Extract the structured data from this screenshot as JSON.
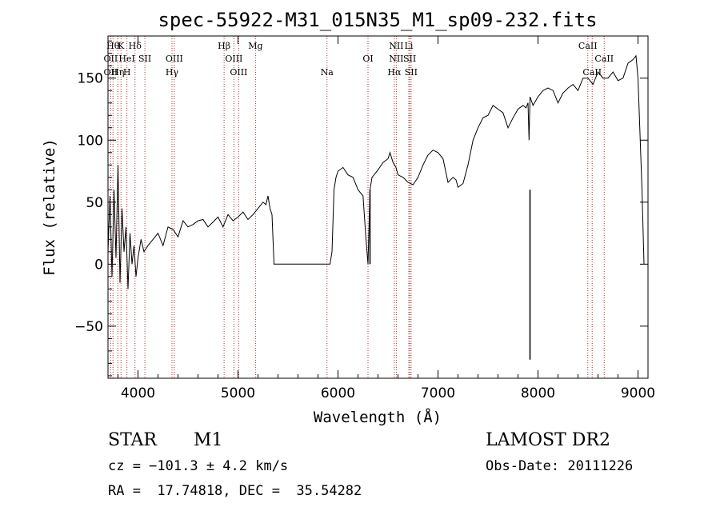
{
  "chart_data": {
    "type": "line",
    "title": "spec-55922-M31_015N35_M1_sp09-232.fits",
    "xlabel": "Wavelength (Å)",
    "ylabel": "Flux (relative)",
    "xlim": [
      3700,
      9100
    ],
    "ylim": [
      -92,
      184
    ],
    "xticks": [
      4000,
      5000,
      6000,
      7000,
      8000,
      9000
    ],
    "yticks": [
      -50,
      0,
      50,
      100,
      150
    ],
    "grid": false,
    "line_color": "#000000",
    "marker_color": "#b03030",
    "series": [
      {
        "x": [
          3700,
          3720,
          3740,
          3760,
          3780,
          3800,
          3820,
          3840,
          3860,
          3880,
          3900,
          3920,
          3940,
          3960,
          3980,
          4000,
          4030,
          4060,
          4100,
          4150,
          4200,
          4250,
          4300,
          4350,
          4400,
          4450,
          4500,
          4550,
          4600,
          4650,
          4700,
          4750,
          4800,
          4850,
          4900,
          4950,
          5000,
          5050,
          5100,
          5150,
          5200,
          5250,
          5280,
          5300,
          5320,
          5340,
          5360,
          5900,
          5920,
          5940,
          5960,
          5980,
          6000,
          6050,
          6100,
          6150,
          6200,
          6250,
          6280,
          6300,
          6320,
          6340,
          6400,
          6450,
          6500,
          6520,
          6550,
          6580,
          6600,
          6650,
          6700,
          6750,
          6800,
          6850,
          6900,
          6950,
          7000,
          7050,
          7100,
          7150,
          7180,
          7200,
          7250,
          7300,
          7350,
          7400,
          7450,
          7500,
          7550,
          7600,
          7650,
          7700,
          7750,
          7800,
          7850,
          7880,
          7900,
          7910,
          7920,
          7950,
          8000,
          8050,
          8100,
          8150,
          8200,
          8250,
          8300,
          8350,
          8400,
          8450,
          8500,
          8550,
          8600,
          8650,
          8700,
          8750,
          8800,
          8850,
          8900,
          8950,
          8980,
          9000,
          9020,
          9040,
          9060
        ],
        "y": [
          10,
          55,
          -10,
          60,
          5,
          80,
          -15,
          45,
          10,
          30,
          -20,
          25,
          0,
          15,
          -10,
          5,
          20,
          10,
          15,
          20,
          25,
          15,
          30,
          28,
          22,
          35,
          30,
          32,
          35,
          36,
          30,
          34,
          38,
          30,
          40,
          35,
          38,
          42,
          36,
          40,
          45,
          50,
          48,
          55,
          45,
          40,
          0,
          0,
          0,
          10,
          60,
          70,
          75,
          78,
          72,
          70,
          60,
          55,
          20,
          0,
          60,
          70,
          76,
          82,
          85,
          90,
          82,
          78,
          72,
          70,
          66,
          64,
          70,
          80,
          88,
          92,
          90,
          85,
          66,
          70,
          68,
          62,
          65,
          80,
          100,
          110,
          118,
          120,
          128,
          125,
          122,
          110,
          118,
          125,
          128,
          126,
          130,
          100,
          135,
          128,
          135,
          140,
          142,
          140,
          130,
          138,
          142,
          145,
          140,
          150,
          150,
          145,
          155,
          150,
          150,
          155,
          148,
          150,
          162,
          165,
          168,
          150,
          105,
          60,
          0
        ],
        "spikes": [
          {
            "x": 7920,
            "y": -77
          },
          {
            "x": 6320,
            "y": 0
          }
        ]
      }
    ],
    "line_markers": [
      {
        "wl": 3750,
        "label": "Hθ",
        "row": 0
      },
      {
        "wl": 3830,
        "label": "K",
        "row": 0
      },
      {
        "wl": 3970,
        "label": "Hδ",
        "row": 0
      },
      {
        "wl": 4861,
        "label": "Hβ",
        "row": 0
      },
      {
        "wl": 5175,
        "label": "Mg",
        "row": 0
      },
      {
        "wl": 6583,
        "label": "NII",
        "row": 0
      },
      {
        "wl": 6708,
        "label": "Li",
        "row": 0
      },
      {
        "wl": 8498,
        "label": "CaII",
        "row": 0
      },
      {
        "wl": 3727,
        "label": "OII",
        "row": 1
      },
      {
        "wl": 3889,
        "label": "HeI",
        "row": 1
      },
      {
        "wl": 4069,
        "label": "SII",
        "row": 1
      },
      {
        "wl": 4363,
        "label": "OIII",
        "row": 1
      },
      {
        "wl": 4959,
        "label": "OIII",
        "row": 1
      },
      {
        "wl": 6300,
        "label": "OI",
        "row": 1
      },
      {
        "wl": 6583,
        "label": "NII",
        "row": 1
      },
      {
        "wl": 6717,
        "label": "SII",
        "row": 1
      },
      {
        "wl": 8662,
        "label": "CaII",
        "row": 1
      },
      {
        "wl": 3727,
        "label": "OII",
        "row": 2
      },
      {
        "wl": 3798,
        "label": "Hη",
        "row": 2
      },
      {
        "wl": 3889,
        "label": "H",
        "row": 2
      },
      {
        "wl": 4340,
        "label": "Hγ",
        "row": 2
      },
      {
        "wl": 5007,
        "label": "OIII",
        "row": 2
      },
      {
        "wl": 5890,
        "label": "Na",
        "row": 2
      },
      {
        "wl": 6563,
        "label": "Hα",
        "row": 2
      },
      {
        "wl": 6731,
        "label": "SII",
        "row": 2
      },
      {
        "wl": 8542,
        "label": "CaII",
        "row": 2
      }
    ]
  },
  "footer": {
    "object_class": "STAR",
    "subclass": "M1",
    "survey": "LAMOST DR2",
    "cz": "cz = −101.3 ± 4.2 km/s",
    "obs_date": "Obs-Date: 20111226",
    "coords": "RA =  17.74818, DEC =  35.54282"
  }
}
